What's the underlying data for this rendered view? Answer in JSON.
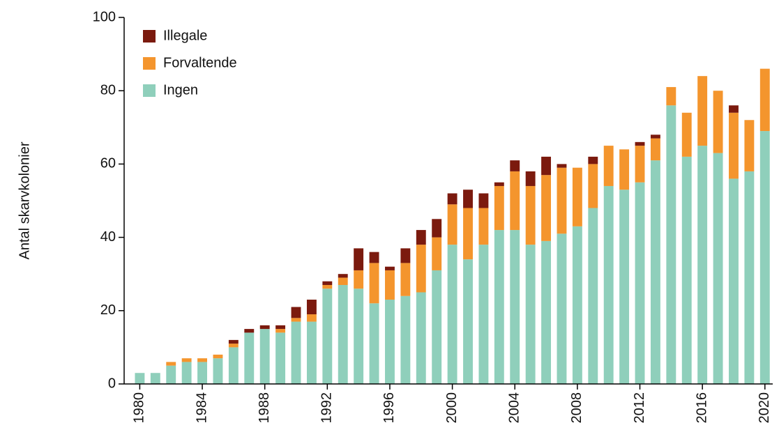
{
  "chart_data": {
    "type": "stacked_bar",
    "ylabel": "Antal skarvkolonier",
    "x": [
      1980,
      1981,
      1982,
      1983,
      1984,
      1985,
      1986,
      1987,
      1988,
      1989,
      1990,
      1991,
      1992,
      1993,
      1994,
      1995,
      1996,
      1997,
      1998,
      1999,
      2000,
      2001,
      2002,
      2003,
      2004,
      2005,
      2006,
      2007,
      2008,
      2009,
      2010,
      2011,
      2012,
      2013,
      2014,
      2015,
      2016,
      2017,
      2018,
      2019,
      2020
    ],
    "series": [
      {
        "name": "Ingen",
        "color": "#8fcfbb",
        "values": [
          3,
          3,
          5,
          6,
          6,
          7,
          10,
          14,
          15,
          14,
          17,
          17,
          26,
          27,
          26,
          22,
          23,
          24,
          25,
          31,
          38,
          34,
          38,
          42,
          42,
          38,
          39,
          41,
          43,
          48,
          54,
          53,
          55,
          61,
          76,
          62,
          65,
          63,
          56,
          58,
          69
        ]
      },
      {
        "name": "Forvaltende",
        "color": "#f4952d",
        "values": [
          0,
          0,
          1,
          1,
          1,
          1,
          1,
          0,
          0,
          1,
          1,
          2,
          1,
          2,
          5,
          11,
          8,
          9,
          13,
          9,
          11,
          14,
          10,
          12,
          16,
          16,
          18,
          18,
          16,
          12,
          11,
          11,
          10,
          6,
          5,
          12,
          19,
          17,
          18,
          14,
          17
        ]
      },
      {
        "name": "Illegale",
        "color": "#7b1a0e",
        "values": [
          0,
          0,
          0,
          0,
          0,
          0,
          1,
          1,
          1,
          1,
          3,
          4,
          1,
          1,
          6,
          3,
          1,
          4,
          4,
          5,
          3,
          5,
          4,
          1,
          3,
          4,
          5,
          1,
          0,
          2,
          0,
          0,
          1,
          1,
          0,
          0,
          0,
          0,
          2,
          0,
          0
        ]
      }
    ],
    "xlim": [
      1979,
      2020.5
    ],
    "xticks": [
      1980,
      1984,
      1988,
      1992,
      1996,
      2000,
      2004,
      2008,
      2012,
      2016,
      2020
    ],
    "ylim": [
      0,
      100
    ],
    "yticks": [
      0,
      20,
      40,
      60,
      80,
      100
    ],
    "legend": "upper left"
  }
}
